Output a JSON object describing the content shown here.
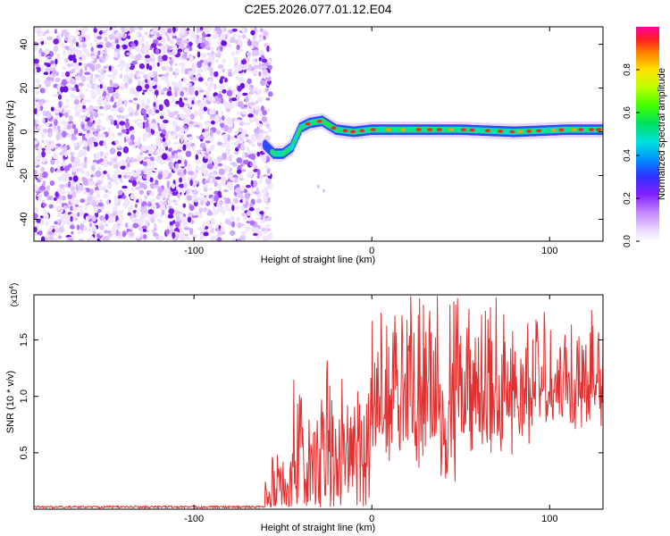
{
  "page": {
    "title": "C2E5.2026.077.01.12.E04"
  },
  "chart_data": [
    {
      "type": "heatmap",
      "xlabel": "Height of straight line (km)",
      "ylabel": "Frequency (Hz)",
      "xlim": [
        -190,
        130
      ],
      "ylim": [
        -50,
        48
      ],
      "xticks": [
        -100,
        0,
        100
      ],
      "yticks": [
        -40,
        -20,
        0,
        20,
        40
      ],
      "noise_region_x": [
        -190,
        -57
      ],
      "transition_x": -57,
      "track": [
        {
          "x": -60,
          "y": -6
        },
        {
          "x": -55,
          "y": -10
        },
        {
          "x": -50,
          "y": -10
        },
        {
          "x": -45,
          "y": -7
        },
        {
          "x": -40,
          "y": 2
        },
        {
          "x": -35,
          "y": 4
        },
        {
          "x": -28,
          "y": 5
        },
        {
          "x": -20,
          "y": 1
        },
        {
          "x": -10,
          "y": 0
        },
        {
          "x": 0,
          "y": 1
        },
        {
          "x": 20,
          "y": 1
        },
        {
          "x": 50,
          "y": 1
        },
        {
          "x": 80,
          "y": 0
        },
        {
          "x": 110,
          "y": 1
        },
        {
          "x": 130,
          "y": 1
        }
      ],
      "colorbar": {
        "label": "Normalized spectral amplitude",
        "range": [
          0.0,
          1.0
        ],
        "ticks": [
          0.0,
          0.2,
          0.4,
          0.6,
          0.8
        ],
        "tick_labels": [
          "0.0",
          "0.2",
          "0.4",
          "0.6",
          "0.8"
        ]
      }
    },
    {
      "type": "line",
      "xlabel": "Height of straight line (km)",
      "ylabel": "SNR (10 * v/v)",
      "scale_note": "(x10",
      "scale_exp": "4",
      "scale_close": ")",
      "xlim": [
        -190,
        130
      ],
      "ylim": [
        0,
        1.9
      ],
      "xticks": [
        -100,
        0,
        100
      ],
      "yticks": [
        0.5,
        1.0,
        1.5
      ],
      "ytick_labels": [
        "0.5",
        "1.0",
        "1.5"
      ],
      "color": "#e03030",
      "series": [
        {
          "name": "SNR",
          "segments": [
            {
              "x0": -190,
              "x1": -60,
              "mean": 0.02,
              "amp": 0.02
            },
            {
              "x0": -60,
              "x1": -45,
              "mean": 0.15,
              "amp": 0.3
            },
            {
              "x0": -45,
              "x1": -30,
              "mean": 0.35,
              "amp": 0.6
            },
            {
              "x0": -30,
              "x1": -15,
              "mean": 0.4,
              "amp": 0.75
            },
            {
              "x0": -15,
              "x1": 0,
              "mean": 0.45,
              "amp": 0.7
            },
            {
              "x0": 0,
              "x1": 20,
              "mean": 0.95,
              "amp": 0.75
            },
            {
              "x0": 20,
              "x1": 50,
              "mean": 0.95,
              "amp": 0.95
            },
            {
              "x0": 50,
              "x1": 90,
              "mean": 1.0,
              "amp": 0.7
            },
            {
              "x0": 90,
              "x1": 130,
              "mean": 1.15,
              "amp": 0.55
            }
          ]
        }
      ]
    }
  ]
}
